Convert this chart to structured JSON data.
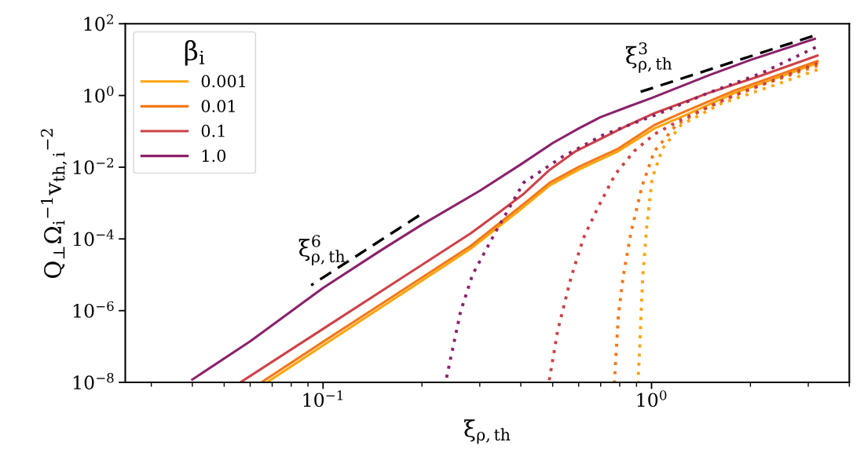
{
  "chart_data": {
    "type": "line",
    "xlabel": "ξ$_{ρ,th}$",
    "ylabel": "Q$_{⊥}$Ω$_{i}$$^{−1}$v$_{th,i}$$^{−2}$",
    "legend_title": "β$_{i}$",
    "legend": "top left",
    "grid": false,
    "log": "xy",
    "xlim": [
      0.025,
      4.0
    ],
    "ylim": [
      1e-08,
      100
    ],
    "xticks": [
      {
        "value": 0.1,
        "label": "10$^{−1}$"
      },
      {
        "value": 1,
        "label": "10$^{0}$"
      }
    ],
    "yticks": [
      {
        "value": 1e-08,
        "label": "10$^{−8}$"
      },
      {
        "value": 1e-06,
        "label": "10$^{−6}$"
      },
      {
        "value": 0.0001,
        "label": "10$^{−4}$"
      },
      {
        "value": 0.01,
        "label": "10$^{−2}$"
      },
      {
        "value": 1,
        "label": "10$^{0}$"
      },
      {
        "value": 100,
        "label": "10$^{2}$"
      }
    ],
    "annotations": [
      "ξ$^{6}$$_{ρ,th}$",
      "ξ$^{3}$$_{ρ,th}$"
    ],
    "series": [
      {
        "name": "0.001",
        "color": "#fca50a",
        "line_style": "solid",
        "x": [
          0.0675,
          0.1,
          0.282,
          0.4,
          0.49,
          0.6,
          0.792,
          1.02,
          1.23,
          1.78,
          3.2
        ],
        "values": [
          1e-08,
          1.07e-07,
          5.4e-05,
          0.00067,
          0.0031,
          0.0085,
          0.028,
          0.12,
          0.25,
          1.15,
          7.9
        ]
      },
      {
        "name": "0.01",
        "color": "#f37819",
        "line_style": "solid",
        "x": [
          0.0649,
          0.1,
          0.282,
          0.4,
          0.49,
          0.6,
          0.792,
          1.02,
          1.23,
          1.78,
          3.2
        ],
        "values": [
          1e-08,
          1.35e-07,
          6.46e-05,
          0.00081,
          0.0037,
          0.0102,
          0.033,
          0.15,
          0.32,
          1.35,
          9.1
        ]
      },
      {
        "name": "0.1",
        "color": "#cc4248",
        "line_style": "solid",
        "x": [
          0.056,
          0.1,
          0.282,
          0.338,
          0.408,
          0.49,
          0.588,
          0.851,
          1.02,
          1.48,
          2.14,
          3.2
        ],
        "values": [
          1e-08,
          3.1e-07,
          0.000145,
          0.00049,
          0.0018,
          0.0085,
          0.028,
          0.15,
          0.32,
          1.15,
          3.5,
          13
        ]
      },
      {
        "name": "1.0",
        "color": "#8a226a",
        "line_style": "solid",
        "x": [
          0.04,
          0.06,
          0.1,
          0.15,
          0.2,
          0.3,
          0.4,
          0.5,
          0.6,
          0.7,
          0.85,
          1.0,
          1.5,
          2.0,
          3.14
        ],
        "values": [
          1.2e-08,
          1.4e-07,
          4.3e-06,
          4.8e-05,
          0.00025,
          0.0022,
          0.012,
          0.047,
          0.12,
          0.25,
          0.49,
          0.85,
          3.7,
          9.8,
          38
        ]
      },
      {
        "color": "#fca50a",
        "line_style": "dotted",
        "x": [
          0.91,
          0.925,
          0.94,
          0.968,
          1.005,
          1.08,
          1.23,
          1.63,
          2.35,
          3.2
        ],
        "values": [
          1e-08,
          2.8e-07,
          8.5e-06,
          0.00024,
          0.005,
          0.033,
          0.15,
          0.6,
          1.9,
          5.2
        ]
      },
      {
        "color": "#f37819",
        "line_style": "dotted",
        "x": [
          0.771,
          0.792,
          0.819,
          0.865,
          0.936,
          1.02,
          1.19,
          1.48,
          2.14,
          3.2
        ],
        "values": [
          1e-08,
          6.8e-07,
          8.5e-06,
          0.000145,
          0.003,
          0.028,
          0.15,
          0.49,
          1.9,
          6.8
        ]
      },
      {
        "color": "#cc4248",
        "line_style": "dotted",
        "x": [
          0.487,
          0.518,
          0.569,
          0.621,
          0.682,
          0.774,
          0.885,
          1.02,
          1.23,
          1.78,
          3.2
        ],
        "values": [
          1e-08,
          2.8e-07,
          8.5e-06,
          0.000107,
          0.00066,
          0.0062,
          0.028,
          0.083,
          0.21,
          1.0,
          7.9
        ]
      },
      {
        "color": "#8a226a",
        "line_style": "dotted",
        "x": [
          0.236,
          0.262,
          0.285,
          0.338,
          0.408,
          0.538,
          0.71,
          1.02,
          1.48,
          2.15,
          3.16
        ],
        "values": [
          1e-08,
          9.1e-07,
          1e-05,
          0.00018,
          0.0037,
          0.02,
          0.078,
          0.28,
          1.15,
          4.1,
          22
        ]
      },
      {
        "color": "#000000",
        "line_style": "dashed",
        "x": [
          0.092,
          0.196
        ],
        "values": [
          5.1e-06,
          0.00045
        ]
      },
      {
        "color": "#000000",
        "line_style": "dashed",
        "x": [
          0.91,
          3.09
        ],
        "values": [
          1.2,
          45
        ]
      }
    ]
  }
}
